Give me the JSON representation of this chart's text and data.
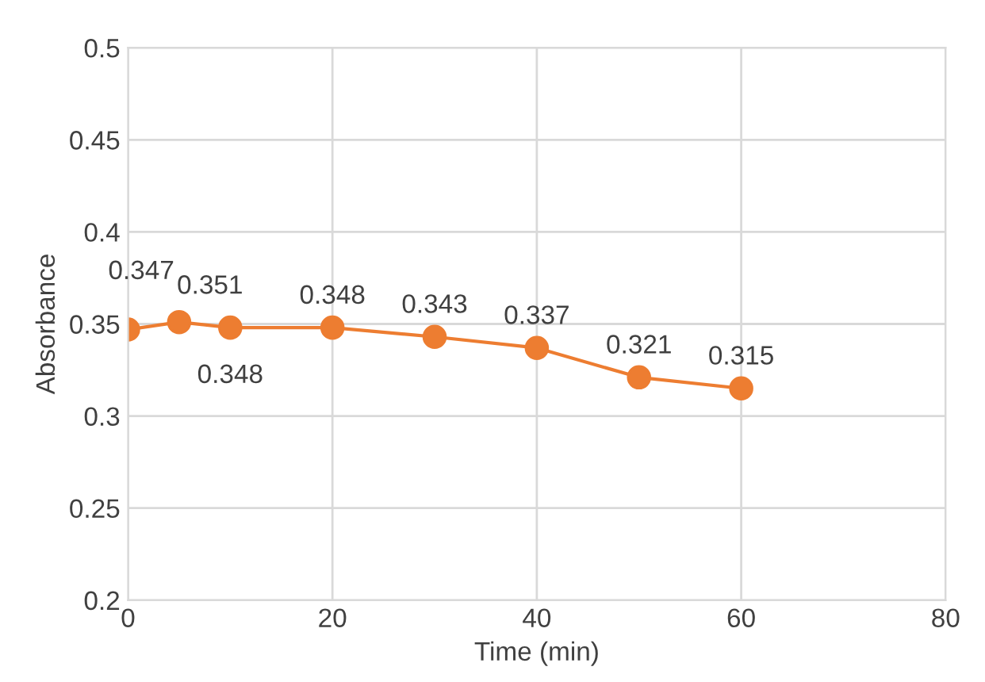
{
  "chart_data": {
    "type": "line",
    "xlabel": "Time (min)",
    "ylabel": "Absorbance",
    "x": [
      0,
      5,
      10,
      20,
      30,
      40,
      50,
      60
    ],
    "series": [
      {
        "color": "#ed7d31",
        "values": [
          0.347,
          0.351,
          0.348,
          0.348,
          0.343,
          0.337,
          0.321,
          0.315
        ]
      }
    ],
    "xlim": [
      0,
      80
    ],
    "xticks": [
      0,
      20,
      40,
      60,
      80
    ],
    "ylim": [
      0.2,
      0.5
    ],
    "yticks": [
      0.2,
      0.25,
      0.3,
      0.35,
      0.4,
      0.45,
      0.5
    ],
    "grid": true,
    "marker": "circle",
    "line_style": "solid",
    "data_labels": true
  }
}
